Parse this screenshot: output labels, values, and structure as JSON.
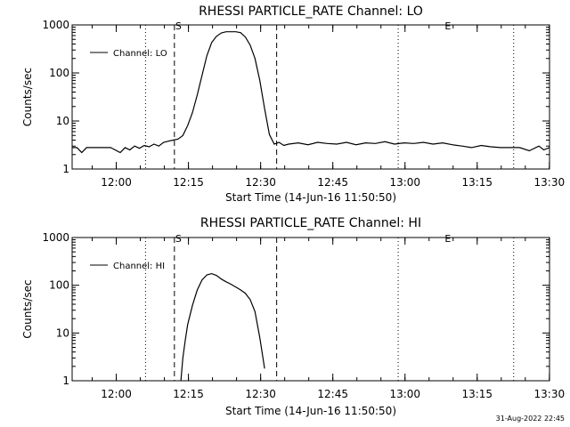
{
  "footer": {
    "date": "31-Aug-2022 22:45"
  },
  "chart_data": [
    {
      "type": "line",
      "title": "RHESSI PARTICLE_RATE Channel: LO",
      "xlabel": "Start Time (14-Jun-16 11:50:50)",
      "ylabel": "Counts/sec",
      "x_unit": "minutes since 11:50:50",
      "xlim": [
        0,
        99.2
      ],
      "ylim": [
        1,
        1000
      ],
      "yscale": "log",
      "x_ticks": [
        "12:00",
        "12:15",
        "12:30",
        "12:45",
        "13:00",
        "13:15",
        "13:30"
      ],
      "y_ticks": [
        "1",
        "10",
        "100",
        "1000"
      ],
      "markers": {
        "start_label": "S",
        "end_label": "E"
      },
      "series": [
        {
          "name": "Channel: LO",
          "x": [
            0,
            1,
            2,
            3,
            4,
            6,
            8,
            10,
            11,
            12,
            13,
            14,
            15,
            16,
            17,
            18,
            19,
            20,
            21,
            22,
            23,
            24,
            25,
            26,
            27,
            28,
            29,
            30,
            31,
            32,
            33,
            34,
            35,
            36,
            37,
            38,
            39,
            40,
            41,
            42,
            43,
            44,
            45,
            47,
            49,
            51,
            53,
            55,
            57,
            59,
            61,
            63,
            65,
            67,
            69,
            71,
            73,
            75,
            77,
            79,
            81,
            83,
            85,
            87,
            89,
            91,
            93,
            95,
            97,
            98,
            99.2
          ],
          "y": [
            2.8,
            2.8,
            2.2,
            2.8,
            2.8,
            2.8,
            2.8,
            2.2,
            2.8,
            2.5,
            3.0,
            2.7,
            3.1,
            2.9,
            3.3,
            3.0,
            3.6,
            3.8,
            4.0,
            4.2,
            5.0,
            8,
            15,
            35,
            90,
            230,
            430,
            580,
            680,
            720,
            720,
            720,
            690,
            560,
            380,
            200,
            70,
            18,
            5.2,
            3.3,
            3.6,
            3.1,
            3.3,
            3.5,
            3.2,
            3.6,
            3.4,
            3.3,
            3.6,
            3.2,
            3.5,
            3.4,
            3.7,
            3.3,
            3.5,
            3.4,
            3.6,
            3.3,
            3.5,
            3.2,
            3.0,
            2.8,
            3.1,
            2.9,
            2.8,
            2.8,
            2.8,
            2.4,
            3.0,
            2.5,
            2.8
          ]
        }
      ]
    },
    {
      "type": "line",
      "title": "RHESSI PARTICLE_RATE Channel: HI",
      "xlabel": "Start Time (14-Jun-16 11:50:50)",
      "ylabel": "Counts/sec",
      "x_unit": "minutes since 11:50:50",
      "xlim": [
        0,
        99.2
      ],
      "ylim": [
        1,
        1000
      ],
      "yscale": "log",
      "x_ticks": [
        "12:00",
        "12:15",
        "12:30",
        "12:45",
        "13:00",
        "13:15",
        "13:30"
      ],
      "y_ticks": [
        "1",
        "10",
        "100",
        "1000"
      ],
      "markers": {
        "start_label": "S",
        "end_label": "E"
      },
      "series": [
        {
          "name": "Channel: HI",
          "x": [
            22.6,
            23,
            23.5,
            24,
            25,
            26,
            27,
            28,
            29,
            30,
            31,
            32,
            33,
            34,
            35,
            36,
            37,
            38,
            39,
            40
          ],
          "y": [
            1,
            3,
            7,
            15,
            38,
            80,
            130,
            165,
            175,
            160,
            135,
            118,
            105,
            92,
            80,
            68,
            50,
            28,
            8,
            1.8
          ]
        }
      ]
    }
  ]
}
